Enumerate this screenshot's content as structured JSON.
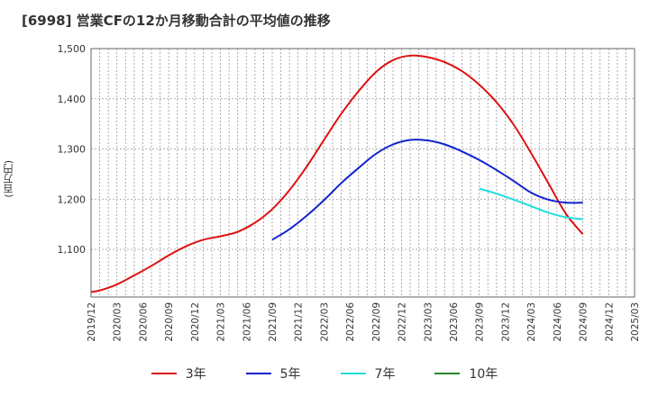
{
  "chart_data": {
    "type": "line",
    "title": "[6998]  営業CFの12か月移動合計の平均値の推移",
    "ylabel": "(百万円)",
    "xlabel": "",
    "ylim": [
      1005,
      1500
    ],
    "yticks": [
      1100,
      1200,
      1300,
      1400,
      1500
    ],
    "ytick_labels": [
      "1,100",
      "1,200",
      "1,300",
      "1,400",
      "1,500"
    ],
    "x_tick_labels": [
      "2019/12",
      "2020/03",
      "2020/06",
      "2020/09",
      "2020/12",
      "2021/03",
      "2021/06",
      "2021/09",
      "2021/12",
      "2022/03",
      "2022/06",
      "2022/09",
      "2022/12",
      "2023/03",
      "2023/06",
      "2023/09",
      "2023/12",
      "2024/03",
      "2024/06",
      "2024/09",
      "2024/12",
      "2025/03"
    ],
    "grid": true,
    "legend_position": "bottom",
    "series": [
      {
        "name": "3年",
        "color": "#dd1111",
        "points": [
          [
            "2019/12",
            1015
          ],
          [
            "2020/01",
            1018
          ],
          [
            "2020/03",
            1030
          ],
          [
            "2020/05",
            1048
          ],
          [
            "2020/07",
            1067
          ],
          [
            "2020/09",
            1088
          ],
          [
            "2020/11",
            1106
          ],
          [
            "2021/01",
            1119
          ],
          [
            "2021/03",
            1126
          ],
          [
            "2021/05",
            1135
          ],
          [
            "2021/07",
            1153
          ],
          [
            "2021/09",
            1180
          ],
          [
            "2021/11",
            1218
          ],
          [
            "2022/01",
            1265
          ],
          [
            "2022/03",
            1318
          ],
          [
            "2022/05",
            1370
          ],
          [
            "2022/07",
            1415
          ],
          [
            "2022/09",
            1453
          ],
          [
            "2022/11",
            1477
          ],
          [
            "2023/01",
            1486
          ],
          [
            "2023/03",
            1483
          ],
          [
            "2023/05",
            1473
          ],
          [
            "2023/07",
            1455
          ],
          [
            "2023/09",
            1428
          ],
          [
            "2023/11",
            1393
          ],
          [
            "2024/01",
            1348
          ],
          [
            "2024/03",
            1292
          ],
          [
            "2024/05",
            1232
          ],
          [
            "2024/07",
            1172
          ],
          [
            "2024/09",
            1130
          ]
        ]
      },
      {
        "name": "5年",
        "color": "#1122cc",
        "points": [
          [
            "2021/09",
            1119
          ],
          [
            "2021/11",
            1140
          ],
          [
            "2022/01",
            1167
          ],
          [
            "2022/03",
            1198
          ],
          [
            "2022/05",
            1232
          ],
          [
            "2022/07",
            1262
          ],
          [
            "2022/09",
            1290
          ],
          [
            "2022/11",
            1309
          ],
          [
            "2023/01",
            1318
          ],
          [
            "2023/03",
            1317
          ],
          [
            "2023/05",
            1309
          ],
          [
            "2023/07",
            1295
          ],
          [
            "2023/09",
            1278
          ],
          [
            "2023/11",
            1258
          ],
          [
            "2024/01",
            1236
          ],
          [
            "2024/03",
            1213
          ],
          [
            "2024/05",
            1199
          ],
          [
            "2024/07",
            1193
          ],
          [
            "2024/09",
            1193
          ]
        ]
      },
      {
        "name": "7年",
        "color": "#22dddd",
        "points": [
          [
            "2023/09",
            1221
          ],
          [
            "2023/11",
            1211
          ],
          [
            "2024/01",
            1199
          ],
          [
            "2024/03",
            1186
          ],
          [
            "2024/05",
            1173
          ],
          [
            "2024/07",
            1164
          ],
          [
            "2024/09",
            1160
          ]
        ]
      },
      {
        "name": "10年",
        "color": "#228822",
        "points": []
      }
    ]
  }
}
